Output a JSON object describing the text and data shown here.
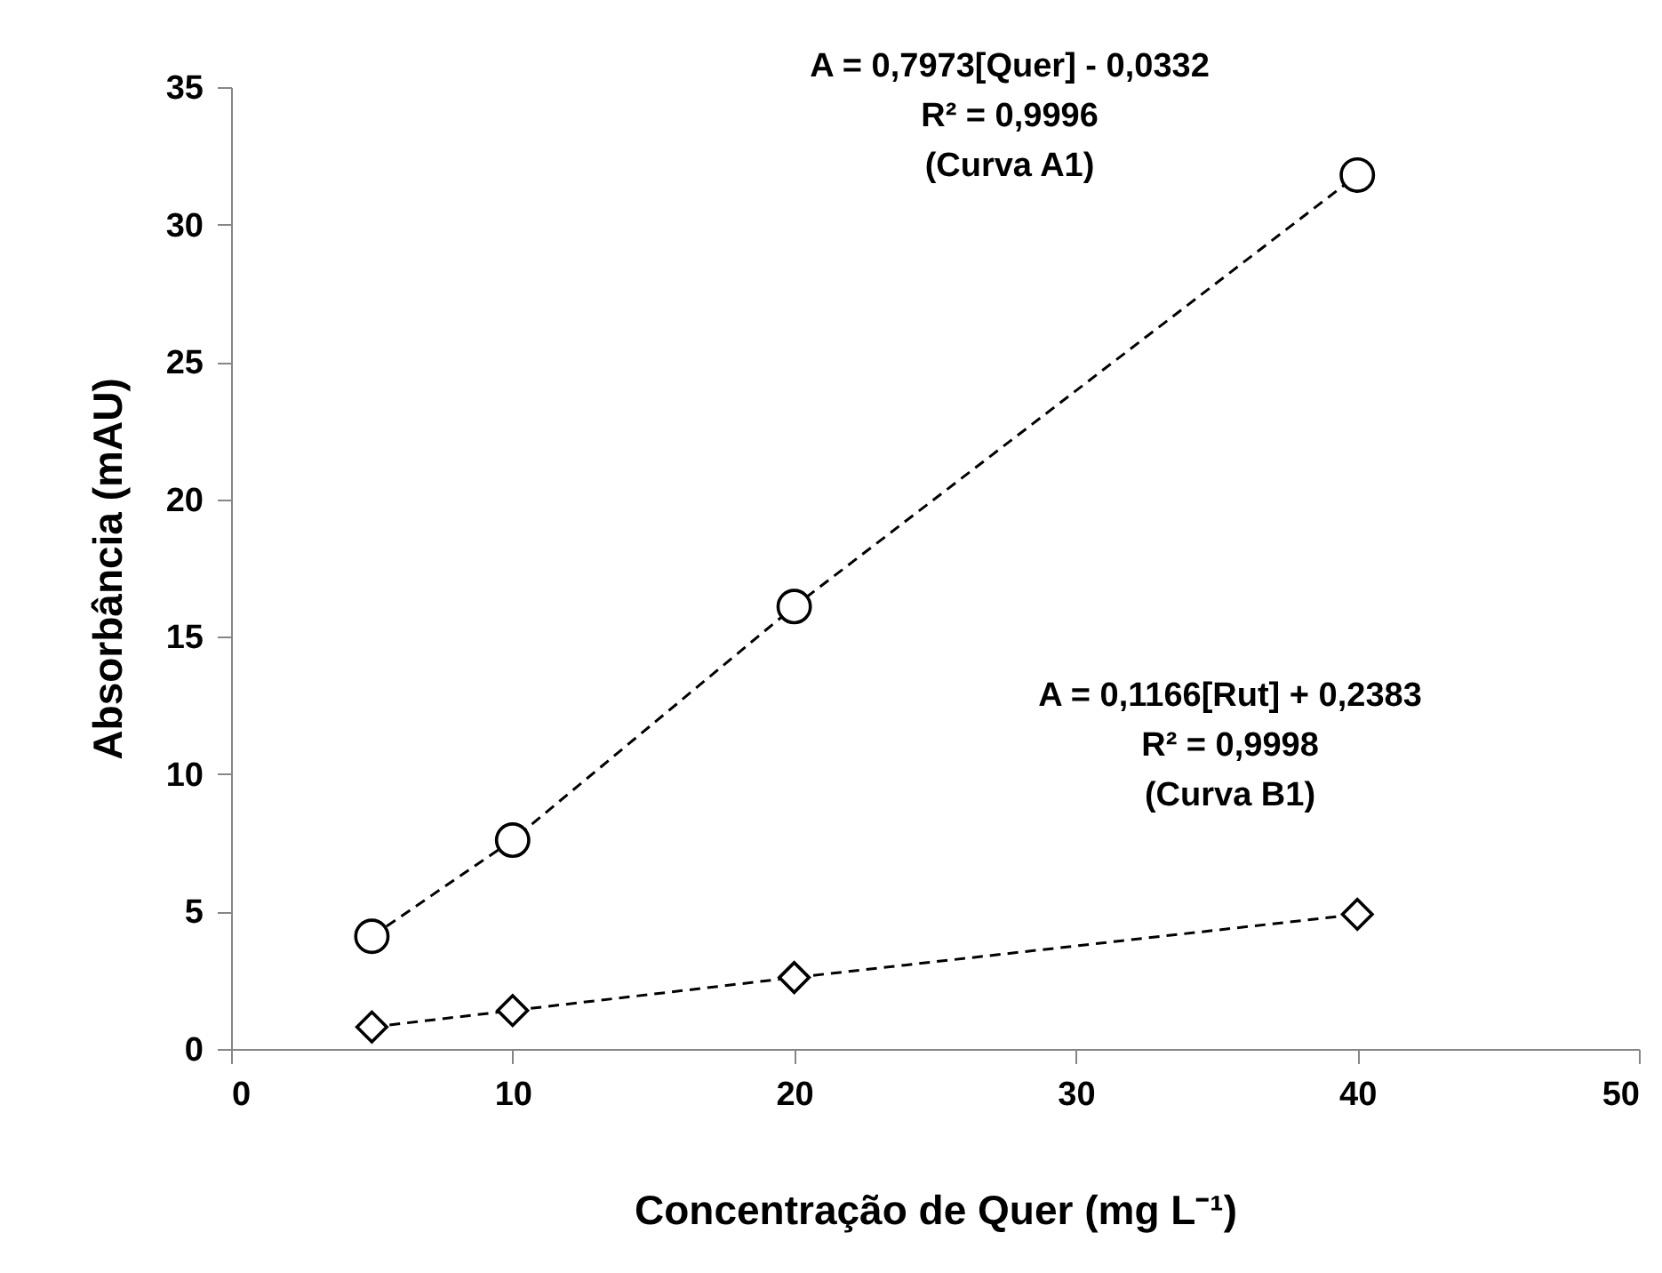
{
  "chart_data": {
    "type": "line",
    "xlabel": "Concentração de Quer (mg L⁻¹)",
    "ylabel": "Absorbância (mAU)",
    "x": [
      5,
      10,
      20,
      40
    ],
    "series": [
      {
        "color": "#000000",
        "marker": "circle",
        "line_style": "dashed",
        "values": [
          4.1,
          7.6,
          16.1,
          31.8
        ]
      },
      {
        "color": "#000000",
        "marker": "diamond",
        "line_style": "dashed",
        "values": [
          0.8,
          1.4,
          2.6,
          4.9
        ]
      }
    ],
    "annotations": [
      "A = 0,7973[Quer] - 0,0332\nR² = 0,9996\n(Curva A1)",
      "A = 0,1166[Rut] + 0,2383\nR² = 0,9998\n(Curva B1)"
    ],
    "xlim": [
      0,
      50
    ],
    "xticks": [
      0,
      10,
      20,
      30,
      40,
      50
    ],
    "ylim": [
      0,
      35
    ],
    "yticks": [
      0,
      5,
      10,
      15,
      20,
      25,
      30,
      35
    ],
    "grid": false
  }
}
